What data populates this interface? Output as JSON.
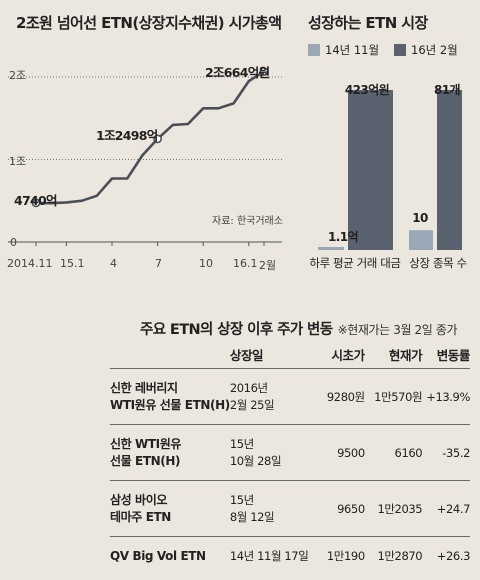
{
  "left_chart": {
    "title": "2조원 넘어선 ETN(상장지수채권) 시가총액",
    "source": "자료: 한국거래소",
    "y_ticks": [
      "2조",
      "1조",
      "0"
    ],
    "x_ticks": [
      "2014.11",
      "15.1",
      "4",
      "7",
      "10",
      "16.1",
      "2월"
    ],
    "annotations": [
      "4740억",
      "1조2498억",
      "2조664억원"
    ]
  },
  "right_chart": {
    "title": "성장하는 ETN 시장",
    "legend": [
      "14년 11월",
      "16년 2월"
    ],
    "categories": [
      "하루 평균 거래 대금",
      "상장 종목 수"
    ],
    "value_labels": [
      "1.1억",
      "423억원",
      "10",
      "81개"
    ]
  },
  "table": {
    "title": "주요 ETN의 상장 이후 주가 변동",
    "note": "※현재가는 3월 2일 종가",
    "headers": [
      "상장일",
      "시초가",
      "현재가",
      "변동률"
    ],
    "rows": [
      {
        "name1": "신한 레버리지",
        "name2": "WTI원유 선물 ETN(H)",
        "date1": "2016년",
        "date2": "2월 25일",
        "open": "9280원",
        "current": "1만570원",
        "change": "+13.9%"
      },
      {
        "name1": "신한 WTI원유",
        "name2": "선물 ETN(H)",
        "date1": "15년",
        "date2": "10월 28일",
        "open": "9500",
        "current": "6160",
        "change": "-35.2"
      },
      {
        "name1": "삼성 바이오",
        "name2": "테마주 ETN",
        "date1": "15년",
        "date2": "8월 12일",
        "open": "9650",
        "current": "1만2035",
        "change": "+24.7"
      },
      {
        "name1": "QV Big Vol ETN",
        "name2": "",
        "date1": "14년 11월 17일",
        "date2": "",
        "open": "1만190",
        "current": "1만2870",
        "change": "+26.3"
      }
    ]
  },
  "chart_data": [
    {
      "type": "line",
      "title": "2조원 넘어선 ETN(상장지수채권) 시가총액",
      "units": "억원",
      "ylim": [
        0,
        20000
      ],
      "y_ticks": [
        "0",
        "1조",
        "2조"
      ],
      "x_ticks": [
        "2014.11",
        "15.1",
        "4",
        "7",
        "10",
        "16.1",
        "2월"
      ],
      "x": [
        "2014.11",
        "2014.12",
        "15.1",
        "15.2",
        "15.3",
        "4",
        "15.5",
        "15.6",
        "7",
        "15.8",
        "15.9",
        "10",
        "15.11",
        "15.12",
        "16.1",
        "2월"
      ],
      "values": [
        4740,
        4700,
        4800,
        5000,
        5600,
        7700,
        7700,
        10500,
        12498,
        14200,
        14300,
        16200,
        16200,
        16800,
        19500,
        20664
      ],
      "annotations": [
        "4740억",
        "1조2498억",
        "2조664억원"
      ],
      "color": "#4a4f57",
      "grid": "dotted horizontal lines at 1조 and 2조"
    },
    {
      "type": "bar",
      "title": "성장하는 ETN 시장",
      "categories": [
        "하루 평균 거래 대금",
        "상장 종목 수"
      ],
      "series": [
        {
          "name": "14년 11월",
          "values": [
            1.1,
            10
          ],
          "labels": [
            "1.1억",
            "10"
          ],
          "color": "#9aa8b6"
        },
        {
          "name": "16년 2월",
          "values": [
            423,
            81
          ],
          "labels": [
            "423억원",
            "81개"
          ],
          "color": "#59626e"
        }
      ],
      "legend": "top"
    }
  ]
}
